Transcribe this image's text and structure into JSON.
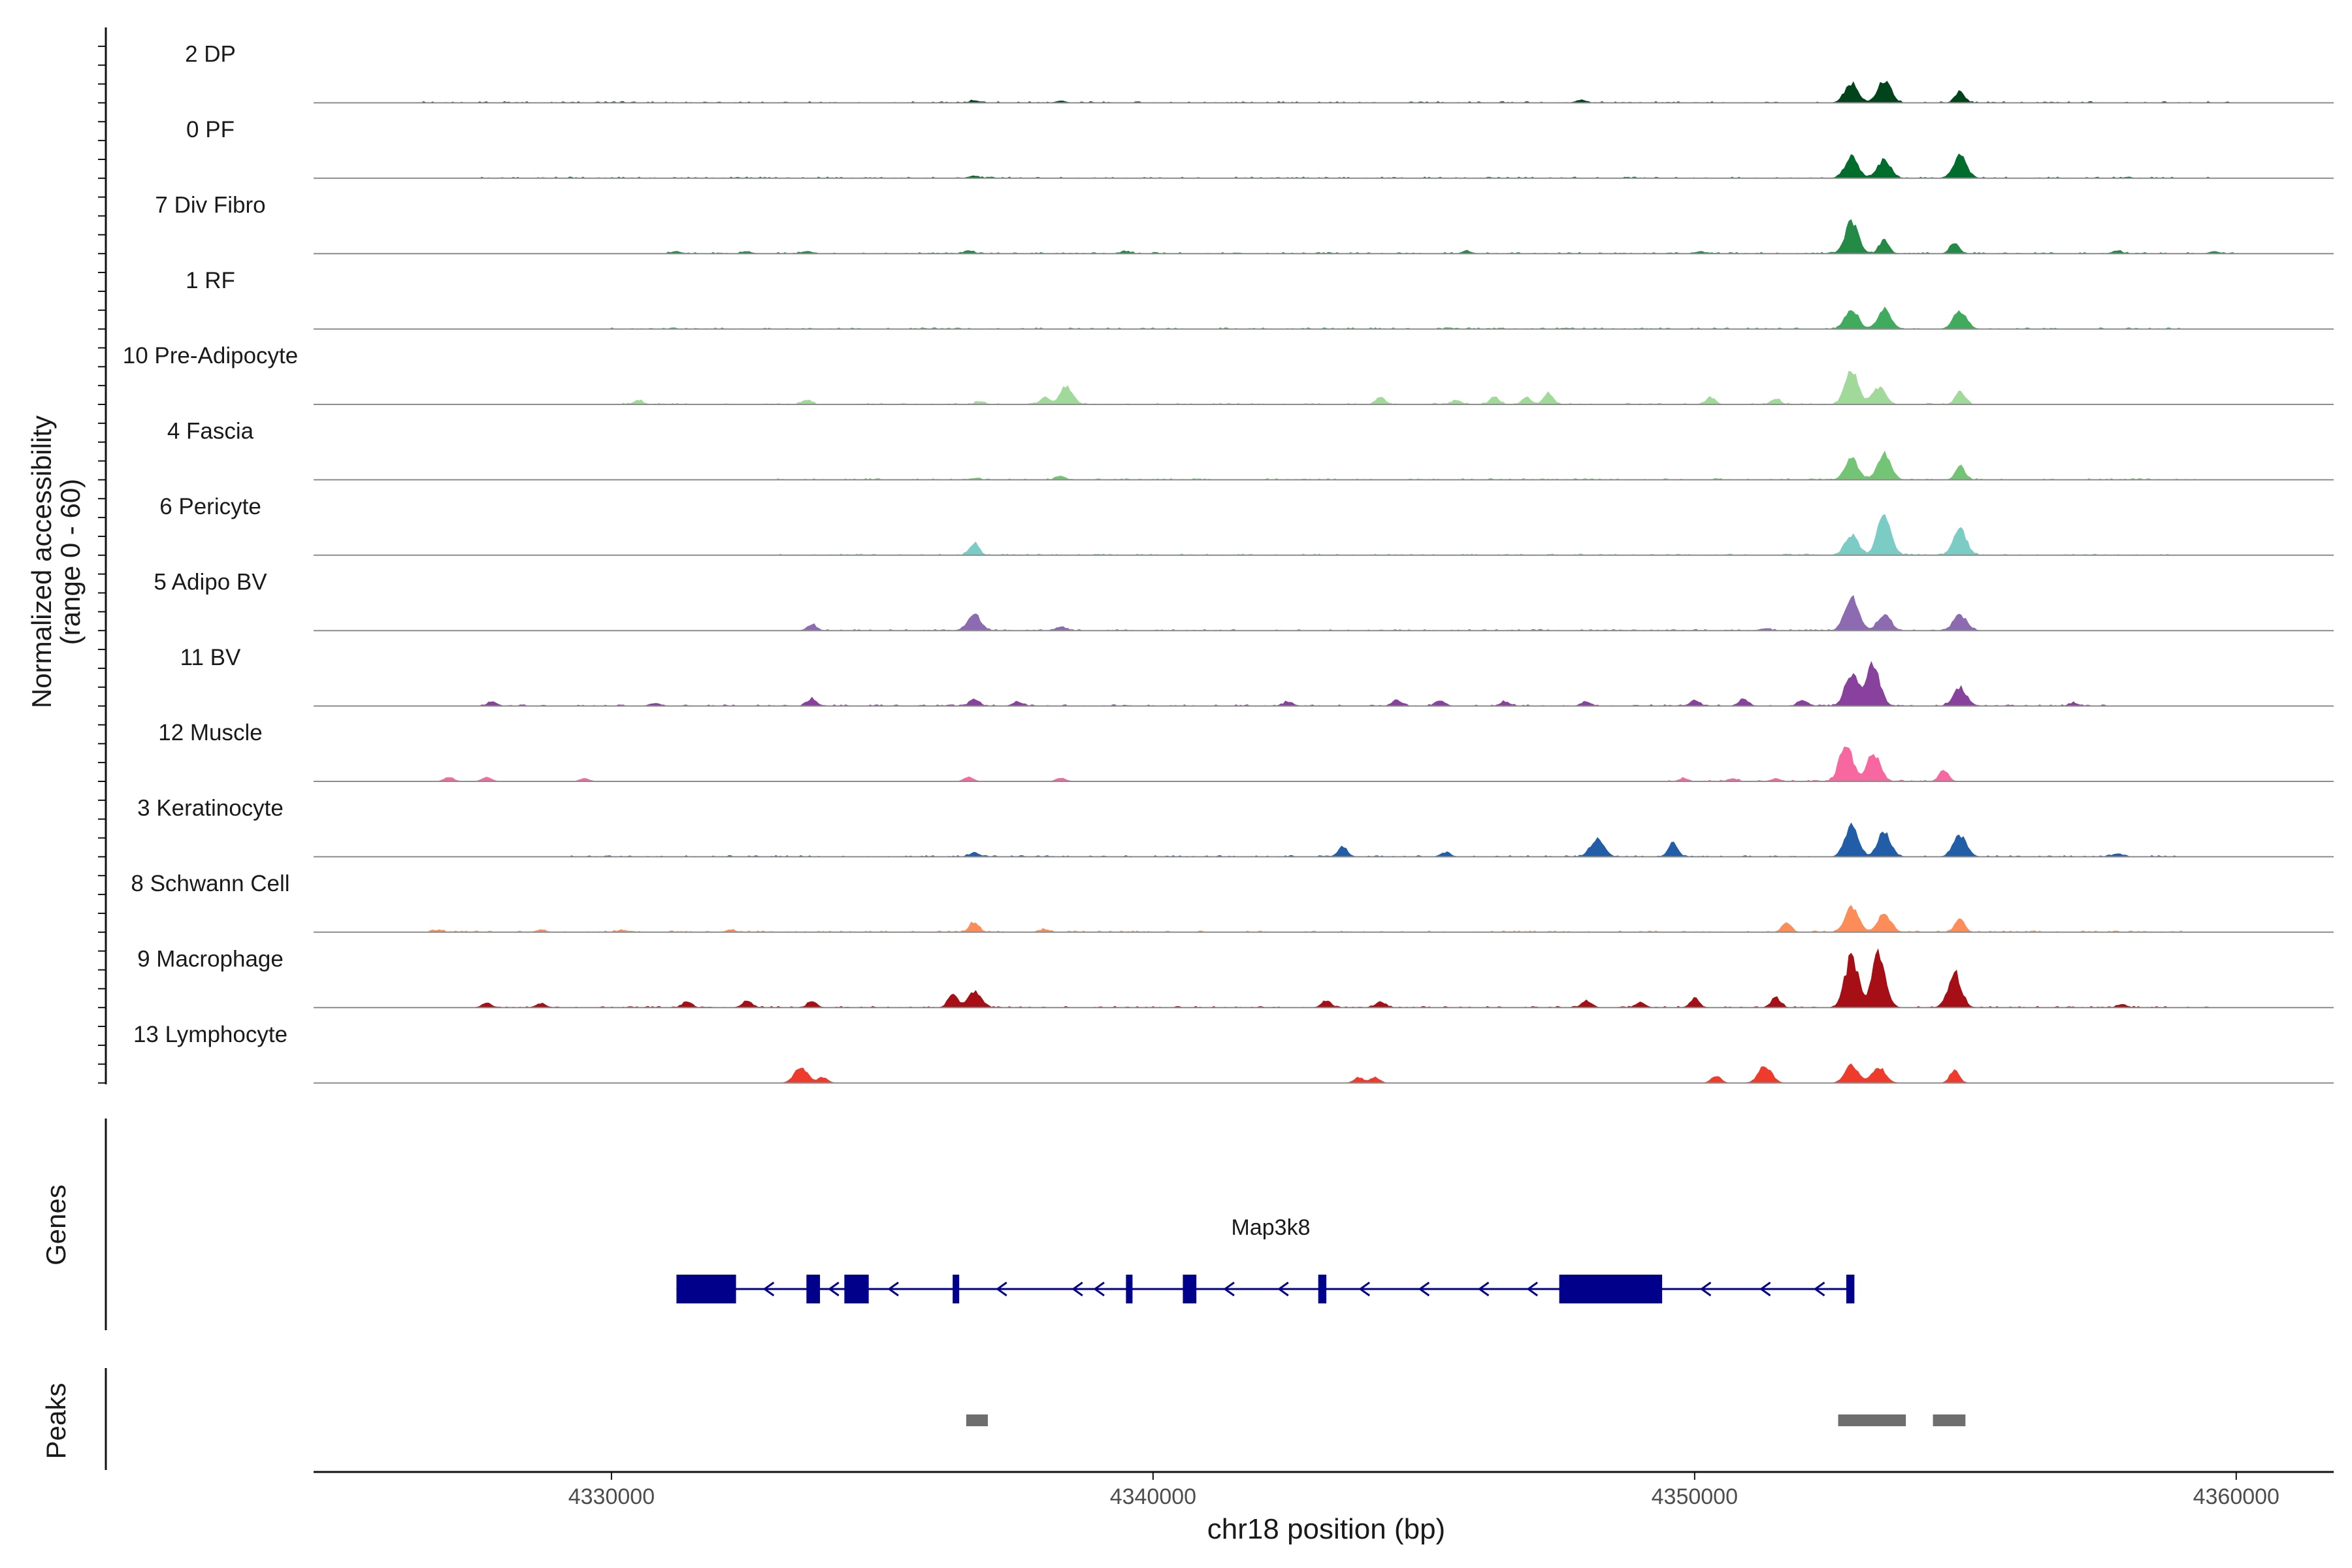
{
  "chart_data": {
    "type": "area",
    "chromosome": "chr18",
    "xlabel": "chr18 position (bp)",
    "ylabel": "Normalized accessibility",
    "ylabel2": "(range 0 - 60)",
    "xlim": [
      4324500,
      4361800
    ],
    "ylim": [
      0,
      60
    ],
    "x_ticks": [
      4330000,
      4340000,
      4350000,
      4360000
    ],
    "x_tick_labels": [
      "4330000",
      "4340000",
      "4350000",
      "4360000"
    ],
    "panel_labels": {
      "genes": "Genes",
      "peaks": "Peaks"
    },
    "tracks": [
      {
        "name": "2 DP",
        "color": "#00441b",
        "peaks": [
          [
            4336700,
            3
          ],
          [
            4338300,
            2.5
          ],
          [
            4347900,
            4
          ],
          [
            4352900,
            28
          ],
          [
            4353500,
            32
          ],
          [
            4354900,
            16
          ]
        ],
        "bg": [
          4326500,
          4360000
        ]
      },
      {
        "name": "0 PF",
        "color": "#006d2c",
        "peaks": [
          [
            4336700,
            3
          ],
          [
            4352900,
            30
          ],
          [
            4353500,
            26
          ],
          [
            4354900,
            32
          ]
        ],
        "bg": [
          4327500,
          4359500
        ]
      },
      {
        "name": "7 Div Fibro",
        "color": "#238b45",
        "peaks": [
          [
            4331200,
            3
          ],
          [
            4332500,
            3
          ],
          [
            4333600,
            3
          ],
          [
            4336600,
            4
          ],
          [
            4339500,
            3
          ],
          [
            4345800,
            3
          ],
          [
            4350100,
            3
          ],
          [
            4352900,
            46
          ],
          [
            4353500,
            20
          ],
          [
            4354800,
            14
          ],
          [
            4357800,
            4
          ],
          [
            4359600,
            3
          ]
        ],
        "bg": [
          4331000,
          4360000
        ]
      },
      {
        "name": "1 RF",
        "color": "#41ab5d",
        "peaks": [
          [
            4352900,
            28
          ],
          [
            4353500,
            26
          ],
          [
            4354900,
            26
          ]
        ],
        "bg": [
          4330000,
          4359000
        ]
      },
      {
        "name": "10 Pre-Adipocyte",
        "color": "#a1d99b",
        "peaks": [
          [
            4330500,
            6
          ],
          [
            4333600,
            6
          ],
          [
            4336800,
            4
          ],
          [
            4338000,
            10
          ],
          [
            4338400,
            24
          ],
          [
            4344200,
            10
          ],
          [
            4345600,
            6
          ],
          [
            4346300,
            10
          ],
          [
            4346900,
            10
          ],
          [
            4347300,
            16
          ],
          [
            4350300,
            9
          ],
          [
            4351500,
            8
          ],
          [
            4352900,
            46
          ],
          [
            4353400,
            24
          ],
          [
            4354900,
            20
          ]
        ],
        "bg": [
          4330000,
          4355200
        ]
      },
      {
        "name": "4 Fascia",
        "color": "#74c476",
        "peaks": [
          [
            4336700,
            2
          ],
          [
            4338300,
            5
          ],
          [
            4352900,
            30
          ],
          [
            4353500,
            36
          ],
          [
            4354900,
            20
          ]
        ],
        "bg": [
          4333000,
          4359500
        ]
      },
      {
        "name": "6 Pericyte",
        "color": "#7bccc4",
        "peaks": [
          [
            4336700,
            18
          ],
          [
            4352900,
            30
          ],
          [
            4353500,
            56
          ],
          [
            4354900,
            36
          ]
        ],
        "bg": [
          4333000,
          4359000
        ]
      },
      {
        "name": "5 Adipo BV",
        "color": "#8c6bb1",
        "peaks": [
          [
            4333700,
            8
          ],
          [
            4336700,
            22
          ],
          [
            4338300,
            5
          ],
          [
            4351300,
            3
          ],
          [
            4352900,
            48
          ],
          [
            4353500,
            22
          ],
          [
            4354900,
            22
          ]
        ],
        "bg": [
          4333500,
          4355200
        ]
      },
      {
        "name": "11 BV",
        "color": "#88419d",
        "peaks": [
          [
            4327800,
            6
          ],
          [
            4330800,
            4
          ],
          [
            4333700,
            10
          ],
          [
            4336700,
            10
          ],
          [
            4337500,
            6
          ],
          [
            4342500,
            6
          ],
          [
            4344500,
            8
          ],
          [
            4345300,
            8
          ],
          [
            4346500,
            6
          ],
          [
            4348000,
            6
          ],
          [
            4350000,
            8
          ],
          [
            4350900,
            10
          ],
          [
            4352000,
            8
          ],
          [
            4352900,
            46
          ],
          [
            4353300,
            58
          ],
          [
            4354900,
            26
          ],
          [
            4357000,
            4
          ]
        ],
        "bg": [
          4327500,
          4357600
        ]
      },
      {
        "name": "12 Muscle",
        "color": "#f768a1",
        "peaks": [
          [
            4327000,
            6
          ],
          [
            4327700,
            6
          ],
          [
            4329500,
            4
          ],
          [
            4336600,
            6
          ],
          [
            4338300,
            5
          ],
          [
            4349800,
            4
          ],
          [
            4350700,
            4
          ],
          [
            4351500,
            4
          ],
          [
            4352800,
            52
          ],
          [
            4353300,
            40
          ],
          [
            4354600,
            16
          ]
        ],
        "bg": [
          4349500,
          4354900
        ]
      },
      {
        "name": "3 Keratinocyte",
        "color": "#225ea8",
        "peaks": [
          [
            4336700,
            6
          ],
          [
            4343500,
            14
          ],
          [
            4345400,
            6
          ],
          [
            4348200,
            26
          ],
          [
            4349600,
            20
          ],
          [
            4352900,
            44
          ],
          [
            4353500,
            34
          ],
          [
            4354900,
            30
          ],
          [
            4357800,
            4
          ]
        ],
        "bg": [
          4329000,
          4359000
        ]
      },
      {
        "name": "8 Schwann Cell",
        "color": "#fc8d59",
        "peaks": [
          [
            4326800,
            3
          ],
          [
            4328700,
            3
          ],
          [
            4330200,
            3
          ],
          [
            4332200,
            3
          ],
          [
            4336700,
            14
          ],
          [
            4338000,
            4
          ],
          [
            4351700,
            12
          ],
          [
            4352900,
            36
          ],
          [
            4353500,
            26
          ],
          [
            4354900,
            20
          ]
        ],
        "bg": [
          4326500,
          4359000
        ]
      },
      {
        "name": "9 Macrophage",
        "color": "#a50f15",
        "peaks": [
          [
            4327700,
            6
          ],
          [
            4328700,
            6
          ],
          [
            4331400,
            8
          ],
          [
            4332500,
            10
          ],
          [
            4333700,
            8
          ],
          [
            4336300,
            20
          ],
          [
            4336700,
            22
          ],
          [
            4343200,
            10
          ],
          [
            4344200,
            8
          ],
          [
            4348000,
            10
          ],
          [
            4349000,
            8
          ],
          [
            4350000,
            12
          ],
          [
            4351500,
            14
          ],
          [
            4352900,
            72
          ],
          [
            4353400,
            76
          ],
          [
            4354800,
            48
          ],
          [
            4357900,
            4
          ]
        ],
        "bg": [
          4327500,
          4359500
        ]
      },
      {
        "name": "13 Lymphocyte",
        "color": "#ef3b2c",
        "peaks": [
          [
            4333500,
            22
          ],
          [
            4333900,
            8
          ],
          [
            4343800,
            8
          ],
          [
            4344100,
            8
          ],
          [
            4350400,
            10
          ],
          [
            4351300,
            24
          ],
          [
            4352900,
            26
          ],
          [
            4353400,
            22
          ],
          [
            4354800,
            18
          ]
        ],
        "bg": []
      }
    ],
    "gene": {
      "name": "Map3k8",
      "color": "#00008b",
      "span": [
        4331200,
        4352900
      ],
      "strand": "-",
      "exons": [
        [
          4331200,
          4332300
        ],
        [
          4333600,
          4333850
        ],
        [
          4334300,
          4334750
        ],
        [
          4336300,
          4336400
        ],
        [
          4339500,
          4339600
        ],
        [
          4340550,
          4340800
        ],
        [
          4343050,
          4343200
        ],
        [
          4347500,
          4349400
        ],
        [
          4352800,
          4352950
        ]
      ],
      "arrows": [
        4332900,
        4334100,
        4335200,
        4337200,
        4338600,
        4339000,
        4341400,
        4342400,
        4343900,
        4345000,
        4346100,
        4347000,
        4350200,
        4351300,
        4352300
      ]
    },
    "peaks_track": {
      "color": "#6e6e6e",
      "regions": [
        [
          4336550,
          4336950
        ],
        [
          4352650,
          4353900
        ],
        [
          4354400,
          4355000
        ]
      ]
    }
  }
}
